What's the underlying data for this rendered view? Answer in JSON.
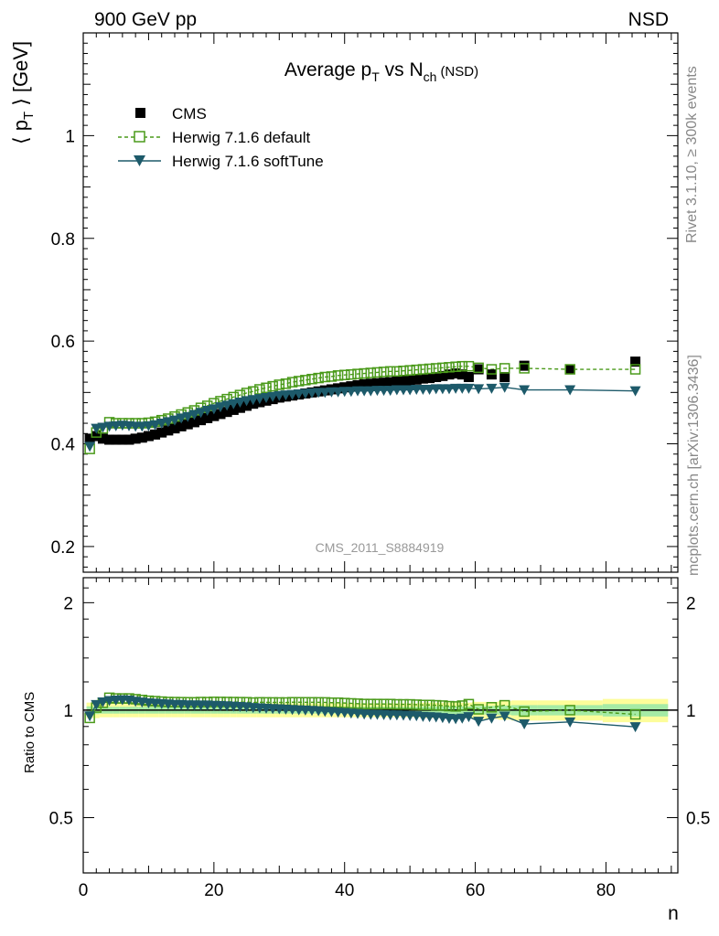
{
  "header": {
    "left": "900 GeV pp",
    "right": "NSD"
  },
  "side_text": {
    "rivet": "Rivet 3.1.10, ≥ 300k events",
    "mcplots": "mcplots.cern.ch [arXiv:1306.3436]"
  },
  "colors": {
    "cms": "#000000",
    "herwig_default": "#4a9a1a",
    "herwig_softtune": "#1d5a6a",
    "band_outer": "#fdfd9a",
    "band_inner": "#a5eba5"
  },
  "chart_data": {
    "type": "scatter",
    "title": "Average p_T vs N_ch (NSD)",
    "title_parts": {
      "main": "Average p",
      "sub1": "T",
      "mid": " vs N",
      "sub2": "ch",
      "tail": "(NSD)"
    },
    "ylabel": "⟨ p_T ⟩ [GeV]",
    "ylabel_parts": {
      "pre": "⟨ p",
      "sub": "T",
      "post": " ⟩ [GeV]"
    },
    "ratio_ylabel": "Ratio to CMS",
    "xlabel": "n",
    "analysis_label": "CMS_2011_S8884919",
    "xlim": [
      0,
      91
    ],
    "ylim": [
      0.15,
      1.2
    ],
    "ratio_ylim": [
      0.35,
      2.35
    ],
    "x_ticks": [
      0,
      20,
      40,
      60,
      80
    ],
    "y_ticks": [
      0.2,
      0.4,
      0.6,
      0.8,
      1
    ],
    "ratio_ticks": [
      0.5,
      1,
      2
    ],
    "legend": [
      {
        "name": "CMS",
        "marker": "filled-square"
      },
      {
        "name": "Herwig 7.1.6 default",
        "marker": "open-square-dashed"
      },
      {
        "name": "Herwig 7.1.6 softTune",
        "marker": "filled-triangle-down-solid"
      }
    ],
    "series": [
      {
        "name": "CMS",
        "x": [
          1,
          2,
          3,
          4,
          5,
          6,
          7,
          8,
          9,
          10,
          11,
          12,
          13,
          14,
          15,
          16,
          17,
          18,
          19,
          20,
          21,
          22,
          23,
          24,
          25,
          26,
          27,
          28,
          29,
          30,
          31,
          32,
          33,
          34,
          35,
          36,
          37,
          38,
          39,
          40,
          41,
          42,
          43,
          44,
          45,
          46,
          47,
          48,
          49,
          50,
          51,
          52,
          53,
          54,
          55,
          56,
          57,
          58,
          59,
          60.5,
          62.5,
          64.5,
          67.5,
          74.5,
          84.5
        ],
        "y": [
          0.41,
          0.415,
          0.41,
          0.408,
          0.408,
          0.408,
          0.408,
          0.41,
          0.412,
          0.415,
          0.418,
          0.422,
          0.426,
          0.43,
          0.434,
          0.438,
          0.442,
          0.446,
          0.45,
          0.454,
          0.458,
          0.462,
          0.466,
          0.47,
          0.474,
          0.478,
          0.481,
          0.484,
          0.487,
          0.49,
          0.492,
          0.494,
          0.496,
          0.498,
          0.5,
          0.502,
          0.504,
          0.506,
          0.508,
          0.51,
          0.512,
          0.514,
          0.516,
          0.517,
          0.518,
          0.519,
          0.52,
          0.521,
          0.522,
          0.523,
          0.525,
          0.527,
          0.528,
          0.53,
          0.532,
          0.535,
          0.537,
          0.535,
          0.53,
          0.545,
          0.535,
          0.53,
          0.552,
          0.545,
          0.56
        ]
      },
      {
        "name": "Herwig 7.1.6 default",
        "x": [
          1,
          2,
          3,
          4,
          5,
          6,
          7,
          8,
          9,
          10,
          11,
          12,
          13,
          14,
          15,
          16,
          17,
          18,
          19,
          20,
          21,
          22,
          23,
          24,
          25,
          26,
          27,
          28,
          29,
          30,
          31,
          32,
          33,
          34,
          35,
          36,
          37,
          38,
          39,
          40,
          41,
          42,
          43,
          44,
          45,
          46,
          47,
          48,
          49,
          50,
          51,
          52,
          53,
          54,
          55,
          56,
          57,
          58,
          59,
          60.5,
          62.5,
          64.5,
          67.5,
          74.5,
          84.5
        ],
        "y": [
          0.39,
          0.422,
          0.43,
          0.442,
          0.44,
          0.44,
          0.44,
          0.44,
          0.44,
          0.441,
          0.443,
          0.446,
          0.449,
          0.453,
          0.457,
          0.461,
          0.465,
          0.47,
          0.474,
          0.479,
          0.483,
          0.487,
          0.491,
          0.495,
          0.499,
          0.502,
          0.506,
          0.509,
          0.512,
          0.515,
          0.517,
          0.52,
          0.522,
          0.524,
          0.526,
          0.528,
          0.53,
          0.531,
          0.533,
          0.534,
          0.535,
          0.536,
          0.537,
          0.538,
          0.539,
          0.54,
          0.541,
          0.541,
          0.542,
          0.543,
          0.544,
          0.545,
          0.546,
          0.547,
          0.548,
          0.549,
          0.55,
          0.551,
          0.551,
          0.548,
          0.545,
          0.547,
          0.547,
          0.545,
          0.545
        ]
      },
      {
        "name": "Herwig 7.1.6 softTune",
        "x": [
          1,
          2,
          3,
          4,
          5,
          6,
          7,
          8,
          9,
          10,
          11,
          12,
          13,
          14,
          15,
          16,
          17,
          18,
          19,
          20,
          21,
          22,
          23,
          24,
          25,
          26,
          27,
          28,
          29,
          30,
          31,
          32,
          33,
          34,
          35,
          36,
          37,
          38,
          39,
          40,
          41,
          42,
          43,
          44,
          45,
          46,
          47,
          48,
          49,
          50,
          51,
          52,
          53,
          54,
          55,
          56,
          57,
          58,
          59,
          60.5,
          62.5,
          64.5,
          67.5,
          74.5,
          84.5
        ],
        "y": [
          0.395,
          0.43,
          0.432,
          0.434,
          0.435,
          0.436,
          0.435,
          0.434,
          0.434,
          0.435,
          0.437,
          0.44,
          0.443,
          0.446,
          0.45,
          0.453,
          0.457,
          0.461,
          0.465,
          0.468,
          0.472,
          0.475,
          0.478,
          0.481,
          0.484,
          0.486,
          0.488,
          0.49,
          0.492,
          0.494,
          0.495,
          0.496,
          0.497,
          0.498,
          0.499,
          0.5,
          0.5,
          0.501,
          0.501,
          0.502,
          0.502,
          0.503,
          0.503,
          0.503,
          0.504,
          0.504,
          0.504,
          0.505,
          0.505,
          0.505,
          0.506,
          0.506,
          0.506,
          0.507,
          0.507,
          0.507,
          0.508,
          0.508,
          0.508,
          0.507,
          0.508,
          0.51,
          0.505,
          0.505,
          0.503
        ]
      }
    ],
    "ratio_bands": {
      "x": [
        1,
        2,
        3,
        4,
        5,
        6,
        7,
        8,
        9,
        10,
        11,
        12,
        13,
        14,
        15,
        16,
        17,
        18,
        19,
        20,
        21,
        22,
        23,
        24,
        25,
        26,
        27,
        28,
        29,
        30,
        31,
        32,
        33,
        34,
        35,
        36,
        37,
        38,
        39,
        40,
        41,
        42,
        43,
        44,
        45,
        46,
        47,
        48,
        49,
        50,
        51,
        52,
        53,
        54,
        55,
        56,
        57,
        58,
        59,
        60.5,
        62.5,
        64.5,
        67.5,
        74.5,
        84.5
      ],
      "widths": [
        1,
        1,
        1,
        1,
        1,
        1,
        1,
        1,
        1,
        1,
        1,
        1,
        1,
        1,
        1,
        1,
        1,
        1,
        1,
        1,
        1,
        1,
        1,
        1,
        1,
        1,
        1,
        1,
        1,
        1,
        1,
        1,
        1,
        1,
        1,
        1,
        1,
        1,
        1,
        1,
        1,
        1,
        1,
        1,
        1,
        1,
        1,
        1,
        1,
        1,
        1,
        1,
        1,
        1,
        1,
        1,
        1,
        1,
        1,
        2,
        2,
        2,
        4,
        10,
        10
      ],
      "outer": [
        0.05,
        0.05,
        0.045,
        0.045,
        0.045,
        0.045,
        0.045,
        0.045,
        0.045,
        0.045,
        0.045,
        0.045,
        0.045,
        0.045,
        0.045,
        0.045,
        0.045,
        0.045,
        0.045,
        0.045,
        0.045,
        0.045,
        0.045,
        0.045,
        0.045,
        0.045,
        0.045,
        0.045,
        0.045,
        0.045,
        0.045,
        0.045,
        0.045,
        0.045,
        0.045,
        0.045,
        0.045,
        0.045,
        0.045,
        0.045,
        0.045,
        0.045,
        0.045,
        0.045,
        0.045,
        0.045,
        0.045,
        0.045,
        0.045,
        0.045,
        0.045,
        0.05,
        0.05,
        0.05,
        0.05,
        0.05,
        0.05,
        0.05,
        0.05,
        0.055,
        0.055,
        0.06,
        0.065,
        0.065,
        0.075
      ],
      "inner": [
        0.025,
        0.025,
        0.022,
        0.022,
        0.022,
        0.022,
        0.022,
        0.022,
        0.022,
        0.022,
        0.022,
        0.022,
        0.022,
        0.022,
        0.022,
        0.022,
        0.022,
        0.022,
        0.022,
        0.022,
        0.022,
        0.022,
        0.022,
        0.022,
        0.022,
        0.022,
        0.022,
        0.022,
        0.022,
        0.022,
        0.022,
        0.022,
        0.022,
        0.022,
        0.022,
        0.022,
        0.022,
        0.022,
        0.022,
        0.022,
        0.022,
        0.022,
        0.022,
        0.022,
        0.022,
        0.022,
        0.022,
        0.022,
        0.022,
        0.022,
        0.022,
        0.025,
        0.025,
        0.025,
        0.025,
        0.025,
        0.025,
        0.025,
        0.025,
        0.028,
        0.028,
        0.03,
        0.033,
        0.033,
        0.04
      ]
    }
  }
}
